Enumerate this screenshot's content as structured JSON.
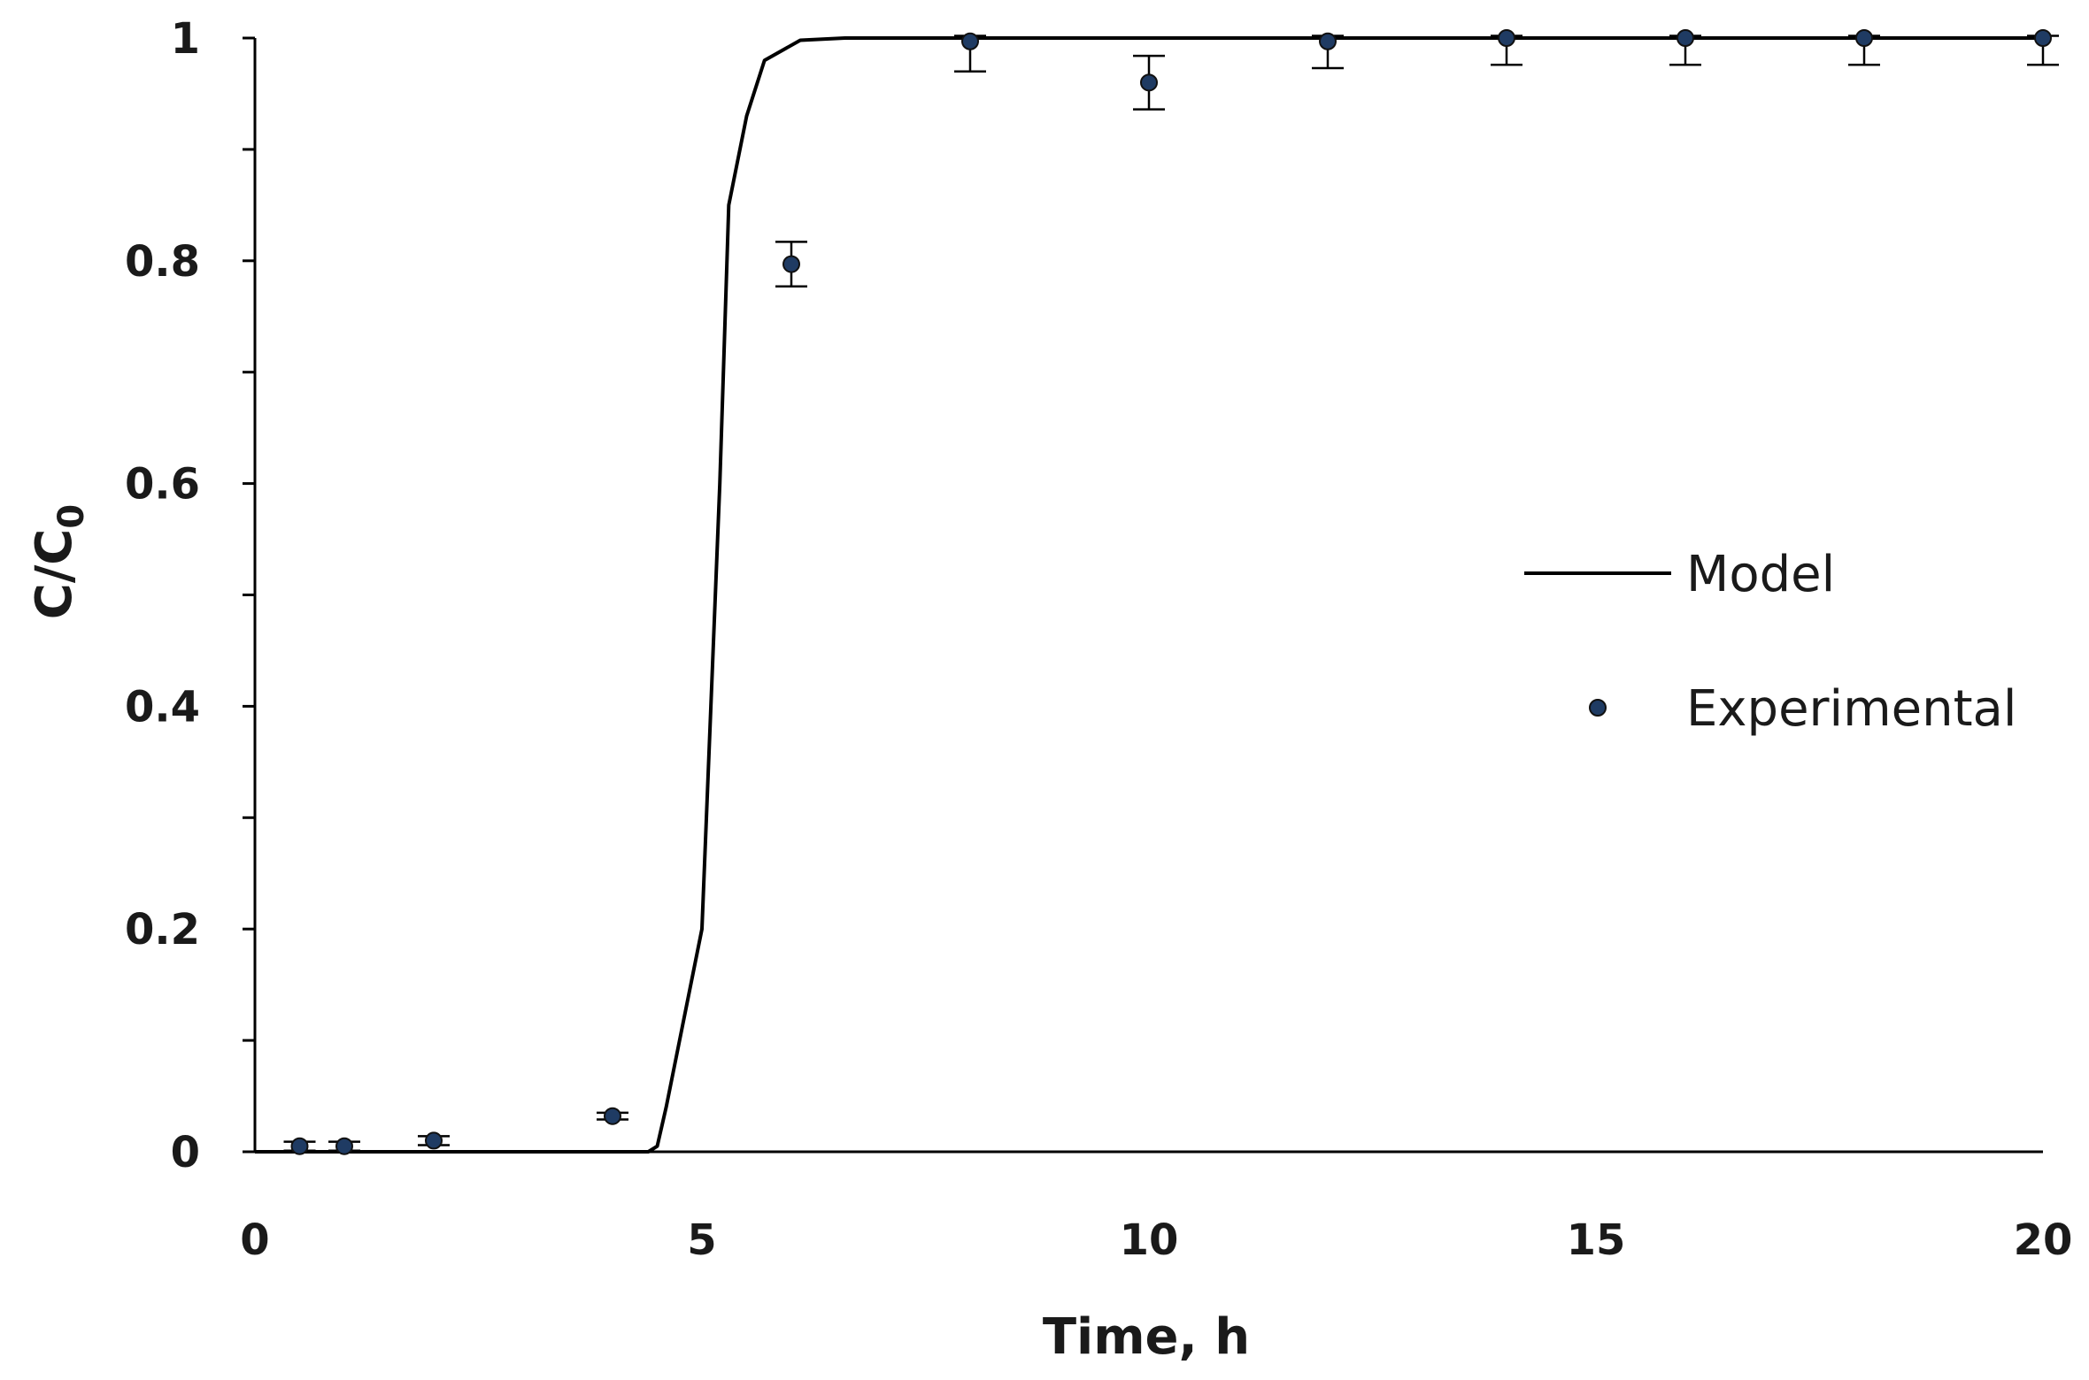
{
  "chart_data": {
    "type": "scatter",
    "xlabel": "Time, h",
    "ylabel_main": "C/C",
    "ylabel_sub": "0",
    "xlim": [
      0,
      20
    ],
    "ylim": [
      0,
      1
    ],
    "x_ticks": [
      0,
      5,
      10,
      15,
      20
    ],
    "x_tick_labels": [
      "0",
      "5",
      "10",
      "15",
      "20"
    ],
    "y_ticks": [
      0,
      0.2,
      0.4,
      0.6,
      0.8,
      1
    ],
    "y_tick_labels": [
      "0",
      "0.2",
      "0.4",
      "0.6",
      "0.8",
      "1"
    ],
    "y_minor_step": 0.1,
    "grid": false,
    "legend_position": "right-middle",
    "series": [
      {
        "name": "Model",
        "kind": "line",
        "color": "#000000",
        "points": [
          [
            0,
            0
          ],
          [
            4.4,
            0
          ],
          [
            4.5,
            0.005
          ],
          [
            4.6,
            0.04
          ],
          [
            4.8,
            0.12
          ],
          [
            5.0,
            0.2
          ],
          [
            5.1,
            0.4
          ],
          [
            5.2,
            0.6
          ],
          [
            5.3,
            0.85
          ],
          [
            5.5,
            0.93
          ],
          [
            5.7,
            0.98
          ],
          [
            6.1,
            0.998
          ],
          [
            6.6,
            1.0
          ],
          [
            8,
            1.0
          ],
          [
            20,
            1.0
          ]
        ]
      },
      {
        "name": "Experimental",
        "kind": "scatter",
        "color": "#1f3b63",
        "points": [
          {
            "x": 0.5,
            "y": 0.005,
            "err": 0.004
          },
          {
            "x": 1,
            "y": 0.005,
            "err": 0.004
          },
          {
            "x": 2,
            "y": 0.01,
            "err": 0.004
          },
          {
            "x": 4,
            "y": 0.032,
            "err": 0.003
          },
          {
            "x": 6,
            "y": 0.797,
            "err": 0.02
          },
          {
            "x": 8,
            "y": 0.997,
            "err": 0.027
          },
          {
            "x": 10,
            "y": 0.96,
            "err": 0.024
          },
          {
            "x": 12,
            "y": 0.997,
            "err": 0.024
          },
          {
            "x": 14,
            "y": 1.0,
            "err": 0.024
          },
          {
            "x": 16,
            "y": 1.0,
            "err": 0.024
          },
          {
            "x": 18,
            "y": 1.0,
            "err": 0.024
          },
          {
            "x": 20,
            "y": 1.0,
            "err": 0.024
          }
        ]
      }
    ]
  }
}
